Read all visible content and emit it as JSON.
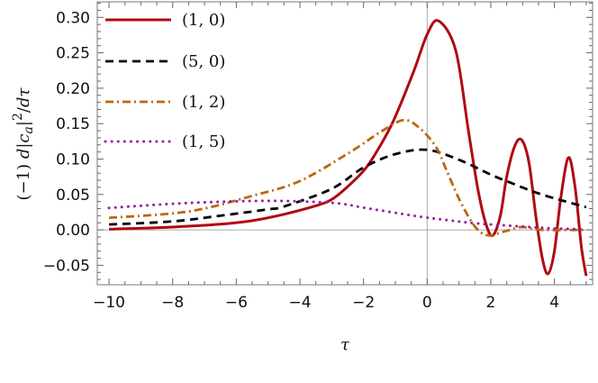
{
  "chart_data": {
    "type": "line",
    "title": "",
    "xlabel": "τ",
    "ylabel": "(−1) d|c_a|²/dτ",
    "ylabel_parts": {
      "prefix": "(−1) ",
      "d": "d",
      "bar1": "|",
      "c": "c",
      "sub": "a",
      "bar2": "|",
      "sup": "2",
      "slash": "/",
      "d2": "d",
      "tau": "τ"
    },
    "xlim": [
      -10.37,
      5.2
    ],
    "ylim": [
      -0.0775,
      0.322
    ],
    "xticks": [
      -10,
      -8,
      -6,
      -4,
      -2,
      0,
      2,
      4
    ],
    "xtick_labels": [
      "−10",
      "−8",
      "−6",
      "−4",
      "−2",
      "0",
      "2",
      "4"
    ],
    "yticks": [
      -0.05,
      0,
      0.05,
      0.1,
      0.15,
      0.2,
      0.25,
      0.3
    ],
    "ytick_labels": [
      "−0.05",
      "0.00",
      "0.05",
      "0.10",
      "0.15",
      "0.20",
      "0.25",
      "0.30"
    ],
    "grid": false,
    "axes_lines_at_zero": true,
    "legend_position": "top-left",
    "series": [
      {
        "name": "(1, 0)",
        "color": "#b00a14",
        "style": "solid",
        "x": [
          -10,
          -8,
          -6.5,
          -5.5,
          -4.5,
          -3.5,
          -3,
          -2.5,
          -1.95,
          -1.5,
          -1.05,
          -0.43,
          0,
          0.36,
          0.9,
          1.3,
          1.6,
          1.85,
          2.06,
          2.3,
          2.5,
          2.75,
          2.97,
          3.2,
          3.42,
          3.62,
          3.8,
          4.0,
          4.2,
          4.44,
          4.65,
          4.85,
          5.0
        ],
        "y": [
          0.001,
          0.004,
          0.008,
          0.013,
          0.022,
          0.034,
          0.043,
          0.061,
          0.086,
          0.117,
          0.155,
          0.223,
          0.276,
          0.295,
          0.253,
          0.139,
          0.056,
          0.008,
          -0.008,
          0.02,
          0.075,
          0.118,
          0.127,
          0.095,
          0.018,
          -0.04,
          -0.062,
          -0.03,
          0.045,
          0.102,
          0.06,
          -0.025,
          -0.065
        ]
      },
      {
        "name": "(5, 0)",
        "color": "#000000",
        "style": "dashed",
        "x": [
          -10,
          -8,
          -6.5,
          -5,
          -4.5,
          -3,
          -2,
          -1,
          0,
          1,
          2,
          2.6,
          3.6,
          5
        ],
        "y": [
          0.0076,
          0.012,
          0.02,
          0.029,
          0.033,
          0.058,
          0.088,
          0.107,
          0.113,
          0.099,
          0.078,
          0.067,
          0.05,
          0.032
        ]
      },
      {
        "name": "(1, 2)",
        "color": "#b8690e",
        "style": "dashdot",
        "x": [
          -10,
          -7.5,
          -5.5,
          -4,
          -2.45,
          -1.44,
          -0.73,
          -0.22,
          0.28,
          0.59,
          0.99,
          1.4,
          1.7,
          2.0,
          2.3,
          2.6,
          3.0,
          3.6,
          5
        ],
        "y": [
          0.017,
          0.026,
          0.048,
          0.069,
          0.109,
          0.139,
          0.155,
          0.143,
          0.117,
          0.086,
          0.045,
          0.011,
          -0.004,
          -0.008,
          -0.004,
          0.0,
          0.004,
          0.0,
          0.0
        ]
      },
      {
        "name": "(1, 5)",
        "color": "#9b1fa3",
        "style": "dotted",
        "x": [
          -10,
          -7.5,
          -5,
          -2.96,
          -1.95,
          -0.43,
          0.59,
          1.6,
          2.9,
          4,
          5
        ],
        "y": [
          0.031,
          0.038,
          0.041,
          0.038,
          0.031,
          0.02,
          0.014,
          0.009,
          0.005,
          0.002,
          0.001
        ]
      }
    ]
  }
}
